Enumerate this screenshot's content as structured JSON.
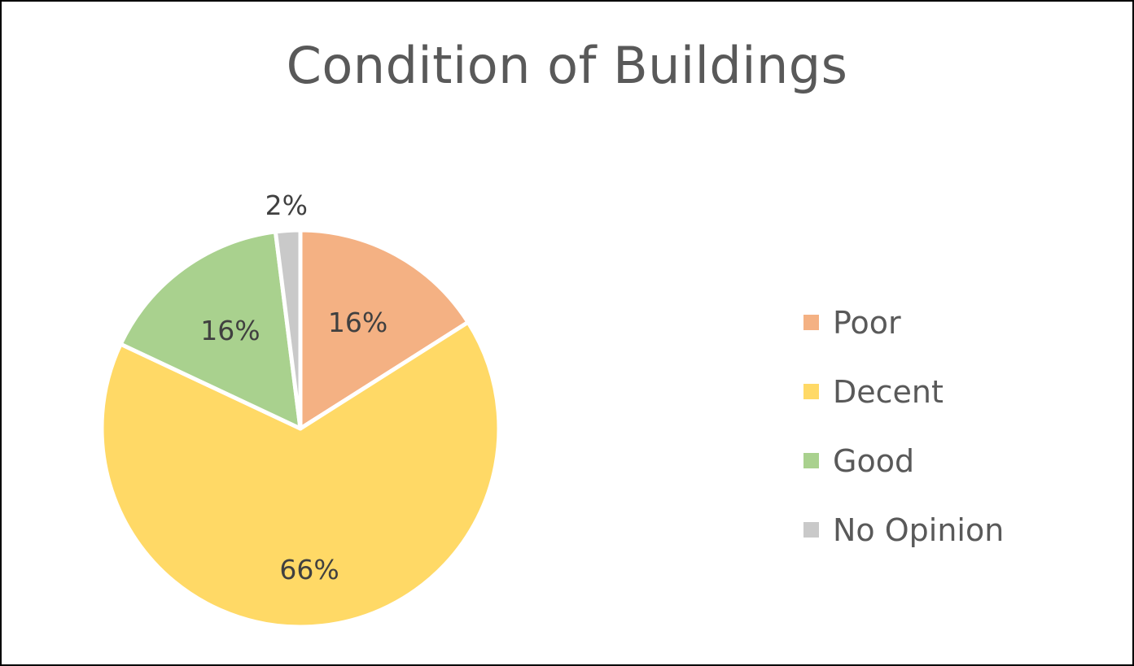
{
  "chart_data": {
    "type": "pie",
    "title": "Condition of Buildings",
    "categories": [
      "Poor",
      "Decent",
      "Good",
      "No Opinion"
    ],
    "values": [
      16,
      66,
      16,
      2
    ],
    "data_labels": [
      "16%",
      "66%",
      "16%",
      "2%"
    ],
    "colors": [
      "#F4B183",
      "#FFD966",
      "#A9D18E",
      "#C9C9C9"
    ],
    "legend_position": "right",
    "start_angle_deg": 0,
    "direction": "clockwise"
  }
}
